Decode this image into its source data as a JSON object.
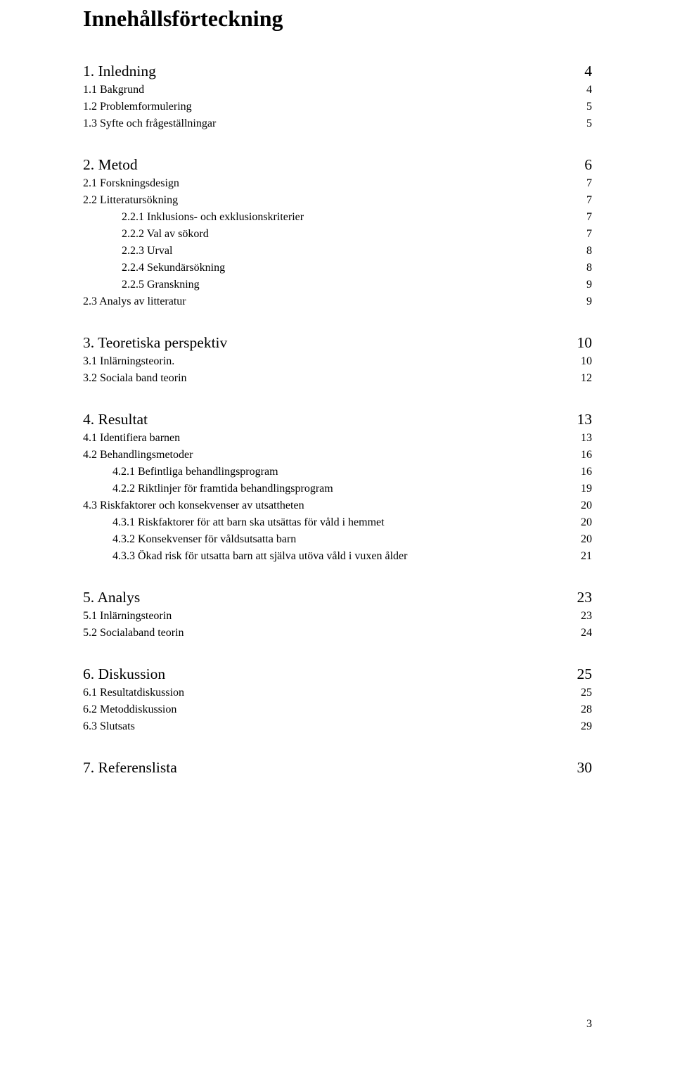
{
  "title": "Innehållsförteckning",
  "footer_page": "3",
  "sections": [
    {
      "head": {
        "label": "1. Inledning",
        "page": "4"
      },
      "subs": [
        {
          "level": "h2",
          "label": "1.1 Bakgrund",
          "page": "4"
        },
        {
          "level": "h2",
          "label": "1.2 Problemformulering",
          "page": "5"
        },
        {
          "level": "h2",
          "label": "1.3 Syfte och frågeställningar",
          "page": "5"
        }
      ]
    },
    {
      "head": {
        "label": "2. Metod",
        "page": "6"
      },
      "subs": [
        {
          "level": "h2",
          "label": "2.1 Forskningsdesign",
          "page": "7"
        },
        {
          "level": "h2",
          "label": "2.2 Litteratursökning",
          "page": "7"
        },
        {
          "level": "h3",
          "label": "2.2.1   Inklusions- och exklusionskriterier",
          "page": "7"
        },
        {
          "level": "h3",
          "label": "2.2.2   Val av sökord",
          "page": "7"
        },
        {
          "level": "h3",
          "label": "2.2.3   Urval",
          "page": "8"
        },
        {
          "level": "h3",
          "label": "2.2.4   Sekundärsökning",
          "page": "8"
        },
        {
          "level": "h3",
          "label": "2.2.5   Granskning",
          "page": "9"
        },
        {
          "level": "h2",
          "label": "2.3 Analys av litteratur",
          "page": "9"
        }
      ]
    },
    {
      "head": {
        "label": "3. Teoretiska perspektiv",
        "page": "10"
      },
      "subs": [
        {
          "level": "h2",
          "label": "3.1 Inlärningsteorin.",
          "page": "10"
        },
        {
          "level": "h2",
          "label": "3.2 Sociala band teorin",
          "page": "12"
        }
      ]
    },
    {
      "head": {
        "label": "4. Resultat",
        "page": "13"
      },
      "subs": [
        {
          "level": "h2",
          "label": "4.1 Identifiera barnen",
          "page": "13"
        },
        {
          "level": "h2",
          "label": "4.2 Behandlingsmetoder",
          "page": "16"
        },
        {
          "level": "h3b",
          "label": "4.2.1   Befintliga behandlingsprogram",
          "page": "16"
        },
        {
          "level": "h3b",
          "label": "4.2.2   Riktlinjer för framtida behandlingsprogram",
          "page": "19"
        },
        {
          "level": "h2",
          "label": "4.3 Riskfaktorer och konsekvenser av utsattheten",
          "page": "20"
        },
        {
          "level": "h3b",
          "label": "4.3.1   Riskfaktorer för att barn ska utsättas för våld i hemmet",
          "page": "20"
        },
        {
          "level": "h3b",
          "label": "4.3.2   Konsekvenser för våldsutsatta barn",
          "page": "20"
        },
        {
          "level": "h3b",
          "label": "4.3.3   Ökad risk för utsatta barn att själva utöva våld i vuxen ålder",
          "page": "21"
        }
      ]
    },
    {
      "head": {
        "label": "5. Analys",
        "page": "23"
      },
      "subs": [
        {
          "level": "h2",
          "label": "5.1 Inlärningsteorin",
          "page": "23"
        },
        {
          "level": "h2",
          "label": "5.2 Socialaband teorin",
          "page": "24"
        }
      ]
    },
    {
      "head": {
        "label": "6. Diskussion",
        "page": "25"
      },
      "subs": [
        {
          "level": "h2",
          "label": "6.1 Resultatdiskussion",
          "page": "25"
        },
        {
          "level": "h2",
          "label": "6.2 Metoddiskussion",
          "page": "28"
        },
        {
          "level": "h2",
          "label": "6.3 Slutsats",
          "page": "29"
        }
      ]
    },
    {
      "head": {
        "label": "7. Referenslista",
        "page": "30"
      },
      "subs": []
    }
  ]
}
